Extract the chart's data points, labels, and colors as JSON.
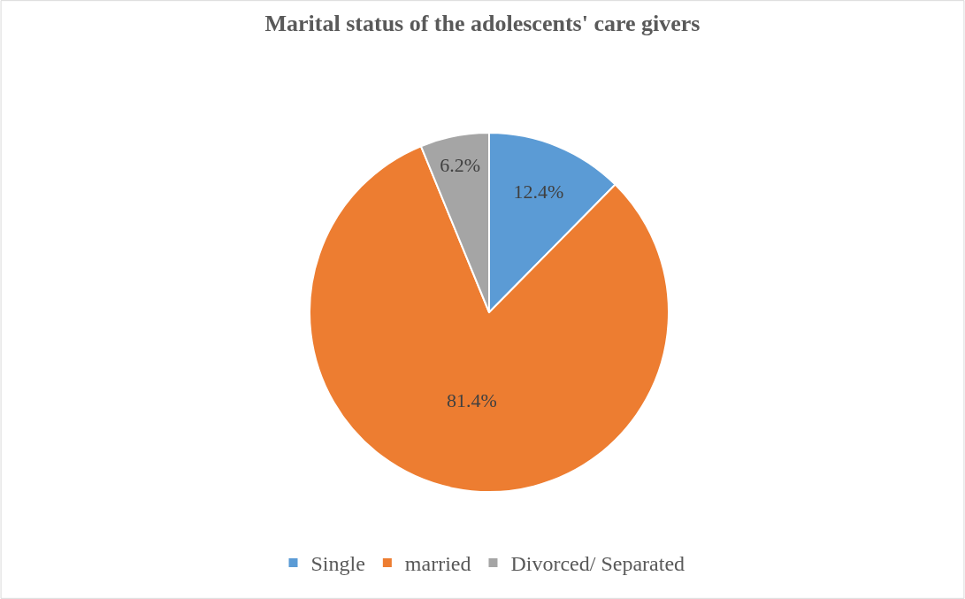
{
  "chart_data": {
    "type": "pie",
    "title": "Marital status of the adolescents' care givers",
    "categories": [
      "Single",
      "married",
      "Divorced/ Separated"
    ],
    "values": [
      12.4,
      81.4,
      6.2
    ],
    "colors": [
      "#5b9bd5",
      "#ed7d31",
      "#a5a5a5"
    ],
    "value_labels": [
      "12.4%",
      "81.4%",
      "6.2%"
    ],
    "legend": "bottom"
  }
}
